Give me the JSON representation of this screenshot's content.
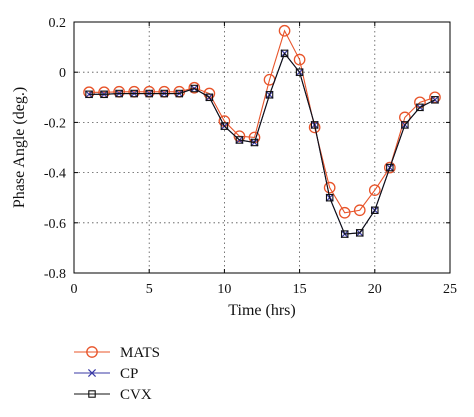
{
  "chart_data": {
    "type": "line",
    "xlabel": "Time (hrs)",
    "ylabel": "Phase Angle (deg.)",
    "xlim": [
      0,
      25
    ],
    "ylim": [
      -0.8,
      0.2
    ],
    "xticks": [
      0,
      5,
      10,
      15,
      20,
      25
    ],
    "yticks": [
      -0.8,
      -0.6,
      -0.4,
      -0.2,
      0,
      0.2
    ],
    "grid": true,
    "legend": "below",
    "x": [
      1,
      2,
      3,
      4,
      5,
      6,
      7,
      8,
      9,
      10,
      11,
      12,
      13,
      14,
      15,
      16,
      17,
      18,
      19,
      20,
      21,
      22,
      23,
      24
    ],
    "series": [
      {
        "name": "MATS",
        "marker": "circle",
        "color": "#e8542a",
        "values": [
          -0.08,
          -0.08,
          -0.078,
          -0.078,
          -0.078,
          -0.078,
          -0.078,
          -0.062,
          -0.085,
          -0.195,
          -0.255,
          -0.26,
          -0.03,
          0.165,
          0.05,
          -0.22,
          -0.46,
          -0.56,
          -0.55,
          -0.47,
          -0.38,
          -0.18,
          -0.12,
          -0.1
        ]
      },
      {
        "name": "CP",
        "marker": "x",
        "color": "#3a3aa6",
        "values": [
          -0.088,
          -0.088,
          -0.085,
          -0.085,
          -0.085,
          -0.085,
          -0.085,
          -0.065,
          -0.1,
          -0.215,
          -0.27,
          -0.28,
          -0.09,
          0.075,
          0.0,
          -0.21,
          -0.5,
          -0.645,
          -0.64,
          -0.55,
          -0.38,
          -0.21,
          -0.14,
          -0.11
        ]
      },
      {
        "name": "CVX",
        "marker": "square",
        "color": "#111111",
        "values": [
          -0.088,
          -0.088,
          -0.085,
          -0.085,
          -0.085,
          -0.085,
          -0.085,
          -0.065,
          -0.1,
          -0.215,
          -0.27,
          -0.28,
          -0.09,
          0.075,
          0.0,
          -0.21,
          -0.5,
          -0.645,
          -0.64,
          -0.55,
          -0.38,
          -0.21,
          -0.14,
          -0.11
        ]
      }
    ]
  }
}
